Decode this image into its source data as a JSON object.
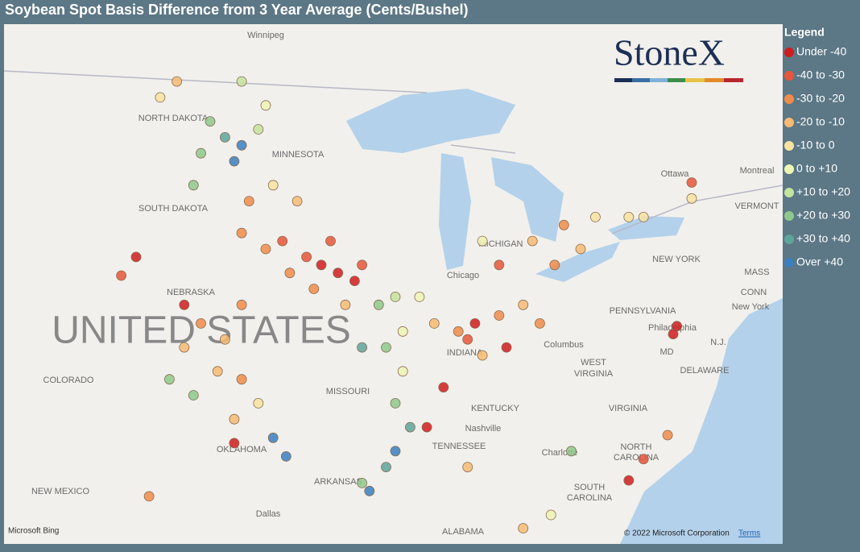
{
  "title": "Soybean Spot Basis Difference from 3 Year Average (Cents/Bushel)",
  "legend": {
    "title": "Legend",
    "items": [
      {
        "label": "Under -40",
        "color": "#d01c1f"
      },
      {
        "label": "-40 to -30",
        "color": "#e8553a"
      },
      {
        "label": "-30 to -20",
        "color": "#f08c4a"
      },
      {
        "label": "-20 to -10",
        "color": "#f6bb72"
      },
      {
        "label": "-10 to 0",
        "color": "#f8e3a0"
      },
      {
        "label": "0 to +10",
        "color": "#eef5b4"
      },
      {
        "label": "+10 to +20",
        "color": "#c4e39c"
      },
      {
        "label": "+20 to +30",
        "color": "#8ec98b"
      },
      {
        "label": "+30 to +40",
        "color": "#5ea59c"
      },
      {
        "label": "Over +40",
        "color": "#3a7fc1"
      }
    ]
  },
  "logo": "StoneX",
  "map_labels": [
    "Winnipeg",
    "NORTH DAKOTA",
    "MINNESOTA",
    "SOUTH DAKOTA",
    "NEBRASKA",
    "UNITED STATES",
    "COLORADO",
    "MISSOURI",
    "INDIANA",
    "KENTUCKY",
    "TENNESSEE",
    "Nashville",
    "OKLAHOMA",
    "ARKANSAS",
    "Dallas",
    "NEW MEXICO",
    "ALABAMA",
    "Chicago",
    "MICHIGAN",
    "Columbus",
    "WEST",
    "VIRGINIA",
    "VIRGINIA",
    "NORTH",
    "CAROLINA",
    "SOUTH",
    "CAROLINA",
    "Charlotte",
    "PENNSYLVANIA",
    "Philadelphia",
    "NEW YORK",
    "New York",
    "Ottawa",
    "Montreal",
    "VERMONT",
    "MD",
    "DELAWARE",
    "N.J.",
    "CONN",
    "MASS"
  ],
  "attribution": {
    "bing": "Microsoft Bing",
    "copyright": "© 2022 Microsoft Corporation",
    "terms": "Terms"
  },
  "points": [
    {
      "lon": -94.6,
      "lat": 42.3,
      "bin": 0
    },
    {
      "lon": -93.7,
      "lat": 42.0,
      "bin": 0
    },
    {
      "lon": -95.4,
      "lat": 42.6,
      "bin": 1
    },
    {
      "lon": -92.8,
      "lat": 41.7,
      "bin": 0
    },
    {
      "lon": -96.7,
      "lat": 43.2,
      "bin": 1
    },
    {
      "lon": -94.1,
      "lat": 43.2,
      "bin": 1
    },
    {
      "lon": -96.3,
      "lat": 42.0,
      "bin": 2
    },
    {
      "lon": -97.6,
      "lat": 42.9,
      "bin": 2
    },
    {
      "lon": -98.9,
      "lat": 43.5,
      "bin": 2
    },
    {
      "lon": -92.4,
      "lat": 42.3,
      "bin": 1
    },
    {
      "lon": -95.0,
      "lat": 41.4,
      "bin": 2
    },
    {
      "lon": -93.3,
      "lat": 40.8,
      "bin": 3
    },
    {
      "lon": -100.6,
      "lat": 47.7,
      "bin": 7
    },
    {
      "lon": -99.8,
      "lat": 47.1,
      "bin": 8
    },
    {
      "lon": -98.9,
      "lat": 46.8,
      "bin": 9
    },
    {
      "lon": -99.3,
      "lat": 46.2,
      "bin": 9
    },
    {
      "lon": -101.1,
      "lat": 46.5,
      "bin": 7
    },
    {
      "lon": -98.0,
      "lat": 47.4,
      "bin": 6
    },
    {
      "lon": -101.5,
      "lat": 45.3,
      "bin": 7
    },
    {
      "lon": -103.3,
      "lat": 48.6,
      "bin": 4
    },
    {
      "lon": -102.4,
      "lat": 49.2,
      "bin": 3
    },
    {
      "lon": -98.9,
      "lat": 49.2,
      "bin": 6
    },
    {
      "lon": -97.6,
      "lat": 48.3,
      "bin": 5
    },
    {
      "lon": -97.2,
      "lat": 45.3,
      "bin": 4
    },
    {
      "lon": -95.9,
      "lat": 44.7,
      "bin": 3
    },
    {
      "lon": -98.5,
      "lat": 44.7,
      "bin": 2
    },
    {
      "lon": -101.1,
      "lat": 40.1,
      "bin": 2
    },
    {
      "lon": -99.8,
      "lat": 39.5,
      "bin": 3
    },
    {
      "lon": -98.9,
      "lat": 40.8,
      "bin": 2
    },
    {
      "lon": -102.0,
      "lat": 39.2,
      "bin": 3
    },
    {
      "lon": -100.2,
      "lat": 38.3,
      "bin": 3
    },
    {
      "lon": -102.8,
      "lat": 38.0,
      "bin": 7
    },
    {
      "lon": -101.5,
      "lat": 37.4,
      "bin": 7
    },
    {
      "lon": -98.9,
      "lat": 38.0,
      "bin": 2
    },
    {
      "lon": -99.3,
      "lat": 36.5,
      "bin": 3
    },
    {
      "lon": -98.0,
      "lat": 37.1,
      "bin": 4
    },
    {
      "lon": -102.0,
      "lat": 40.8,
      "bin": 0
    },
    {
      "lon": -99.3,
      "lat": 35.6,
      "bin": 0
    },
    {
      "lon": -97.2,
      "lat": 35.8,
      "bin": 9
    },
    {
      "lon": -96.5,
      "lat": 35.1,
      "bin": 9
    },
    {
      "lon": -91.5,
      "lat": 40.8,
      "bin": 7
    },
    {
      "lon": -90.6,
      "lat": 41.1,
      "bin": 6
    },
    {
      "lon": -90.2,
      "lat": 39.8,
      "bin": 5
    },
    {
      "lon": -91.1,
      "lat": 39.2,
      "bin": 7
    },
    {
      "lon": -92.4,
      "lat": 39.2,
      "bin": 8
    },
    {
      "lon": -89.3,
      "lat": 41.1,
      "bin": 5
    },
    {
      "lon": -88.5,
      "lat": 40.1,
      "bin": 3
    },
    {
      "lon": -87.2,
      "lat": 39.8,
      "bin": 2
    },
    {
      "lon": -86.3,
      "lat": 40.1,
      "bin": 0
    },
    {
      "lon": -84.6,
      "lat": 39.2,
      "bin": 0
    },
    {
      "lon": -85.0,
      "lat": 40.4,
      "bin": 2
    },
    {
      "lon": -83.7,
      "lat": 40.8,
      "bin": 3
    },
    {
      "lon": -82.8,
      "lat": 40.1,
      "bin": 2
    },
    {
      "lon": -85.9,
      "lat": 38.9,
      "bin": 3
    },
    {
      "lon": -88.0,
      "lat": 37.7,
      "bin": 0
    },
    {
      "lon": -86.7,
      "lat": 39.5,
      "bin": 1
    },
    {
      "lon": -83.2,
      "lat": 43.2,
      "bin": 3
    },
    {
      "lon": -81.5,
      "lat": 43.8,
      "bin": 2
    },
    {
      "lon": -80.6,
      "lat": 42.9,
      "bin": 3
    },
    {
      "lon": -79.8,
      "lat": 44.1,
      "bin": 4
    },
    {
      "lon": -82.0,
      "lat": 42.3,
      "bin": 2
    },
    {
      "lon": -85.0,
      "lat": 42.3,
      "bin": 1
    },
    {
      "lon": -85.9,
      "lat": 43.2,
      "bin": 5
    },
    {
      "lon": -78.0,
      "lat": 44.1,
      "bin": 4
    },
    {
      "lon": -77.2,
      "lat": 44.1,
      "bin": 4
    },
    {
      "lon": -74.6,
      "lat": 44.8,
      "bin": 4
    },
    {
      "lon": -74.6,
      "lat": 45.4,
      "bin": 1
    },
    {
      "lon": -90.2,
      "lat": 38.3,
      "bin": 5
    },
    {
      "lon": -90.6,
      "lat": 37.1,
      "bin": 7
    },
    {
      "lon": -89.8,
      "lat": 36.2,
      "bin": 8
    },
    {
      "lon": -90.6,
      "lat": 35.3,
      "bin": 9
    },
    {
      "lon": -91.1,
      "lat": 34.7,
      "bin": 8
    },
    {
      "lon": -92.0,
      "lat": 33.8,
      "bin": 9
    },
    {
      "lon": -92.4,
      "lat": 34.1,
      "bin": 7
    },
    {
      "lon": -88.9,
      "lat": 36.2,
      "bin": 0
    },
    {
      "lon": -75.4,
      "lat": 40.0,
      "bin": 0
    },
    {
      "lon": -75.6,
      "lat": 39.7,
      "bin": 0
    },
    {
      "lon": -77.2,
      "lat": 35.0,
      "bin": 1
    },
    {
      "lon": -75.9,
      "lat": 35.9,
      "bin": 2
    },
    {
      "lon": -78.0,
      "lat": 34.2,
      "bin": 0
    },
    {
      "lon": -81.1,
      "lat": 35.3,
      "bin": 7
    },
    {
      "lon": -105.4,
      "lat": 41.9,
      "bin": 1
    },
    {
      "lon": -104.6,
      "lat": 42.6,
      "bin": 0
    },
    {
      "lon": -103.9,
      "lat": 33.6,
      "bin": 2
    },
    {
      "lon": -86.7,
      "lat": 34.7,
      "bin": 3
    },
    {
      "lon": -83.7,
      "lat": 32.4,
      "bin": 3
    },
    {
      "lon": -82.2,
      "lat": 32.9,
      "bin": 5
    }
  ]
}
